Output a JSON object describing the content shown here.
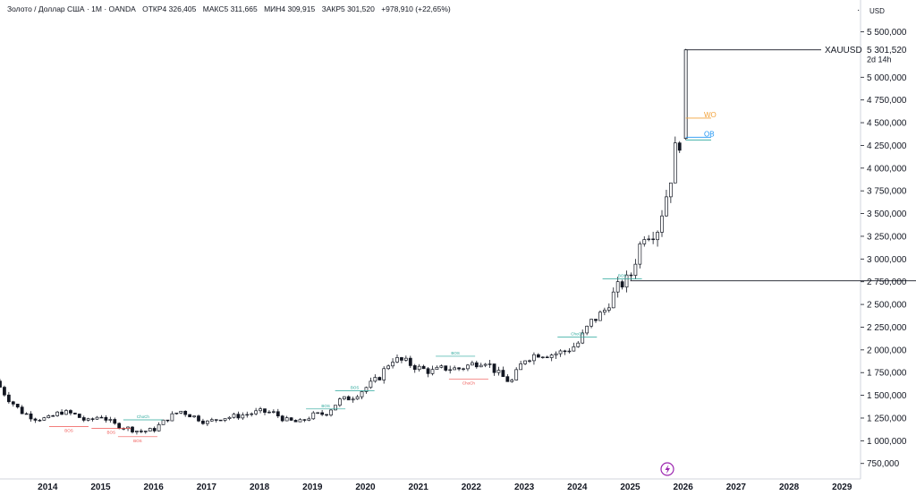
{
  "header": {
    "instrument": "Золото / Доллар США · 1M · OANDA",
    "open": "ОТКР4 326,405",
    "high": "МАКС5 311,665",
    "low": "МИН4 309,915",
    "close": "ЗАКР5 301,520",
    "change": "+978,910 (+22,65%)"
  },
  "currency": "USD",
  "symbol": "XAUUSD",
  "last_price": "5 301,520",
  "countdown": "2d 14h",
  "colors": {
    "candle": "#131722",
    "bos_green": "#26a69a",
    "bos_red": "#ef5350",
    "wo": "#f2a23a",
    "ob": "#2196f3",
    "accent_icon": "#9c27b0"
  },
  "annotations": {
    "wo_label": "WO",
    "ob_label": "OB"
  },
  "chart_data": {
    "type": "candlestick",
    "title": "Золото / Доллар США · 1M · OANDA",
    "xlabel": "",
    "ylabel": "",
    "x_ticks": [
      "2014",
      "2015",
      "2016",
      "2017",
      "2018",
      "2019",
      "2020",
      "2021",
      "2022",
      "2023",
      "2024",
      "2025",
      "2026",
      "2027",
      "2028",
      "2029"
    ],
    "y_ticks": [
      "750,000",
      "1 000,000",
      "1 250,000",
      "1 500,000",
      "1 750,000",
      "2 000,000",
      "2 250,000",
      "2 500,000",
      "2 750,000",
      "3 000,000",
      "3 250,000",
      "3 500,000",
      "3 750,000",
      "4 000,000",
      "4 250,000",
      "4 500,000",
      "4 750,000",
      "5 000,000",
      "5 500,000"
    ],
    "ylim": [
      580,
      5850
    ],
    "xlim": [
      2013.1,
      2029.35
    ],
    "series": [
      {
        "approx_monthly_close": [
          [
            2013.0,
            1670
          ],
          [
            2013.25,
            1470
          ],
          [
            2013.5,
            1320
          ],
          [
            2013.75,
            1250
          ],
          [
            2014.0,
            1240
          ],
          [
            2014.25,
            1320
          ],
          [
            2014.5,
            1290
          ],
          [
            2014.75,
            1210
          ],
          [
            2015.0,
            1280
          ],
          [
            2015.25,
            1180
          ],
          [
            2015.5,
            1140
          ],
          [
            2015.75,
            1100
          ],
          [
            2016.0,
            1120
          ],
          [
            2016.25,
            1240
          ],
          [
            2016.5,
            1330
          ],
          [
            2016.75,
            1270
          ],
          [
            2017.0,
            1200
          ],
          [
            2017.25,
            1250
          ],
          [
            2017.5,
            1265
          ],
          [
            2017.75,
            1290
          ],
          [
            2018.0,
            1320
          ],
          [
            2018.25,
            1310
          ],
          [
            2018.5,
            1225
          ],
          [
            2018.75,
            1200
          ],
          [
            2019.0,
            1280
          ],
          [
            2019.25,
            1300
          ],
          [
            2019.5,
            1440
          ],
          [
            2019.75,
            1480
          ],
          [
            2020.0,
            1580
          ],
          [
            2020.25,
            1690
          ],
          [
            2020.5,
            1900
          ],
          [
            2020.75,
            1870
          ],
          [
            2021.0,
            1800
          ],
          [
            2021.25,
            1760
          ],
          [
            2021.5,
            1800
          ],
          [
            2021.75,
            1790
          ],
          [
            2022.0,
            1840
          ],
          [
            2022.25,
            1890
          ],
          [
            2022.5,
            1740
          ],
          [
            2022.75,
            1640
          ],
          [
            2023.0,
            1900
          ],
          [
            2023.25,
            1960
          ],
          [
            2023.5,
            1950
          ],
          [
            2023.75,
            1980
          ],
          [
            2024.0,
            2060
          ],
          [
            2024.25,
            2300
          ],
          [
            2024.5,
            2420
          ],
          [
            2024.75,
            2680
          ],
          [
            2025.0,
            2800
          ],
          [
            2025.25,
            3280
          ],
          [
            2025.5,
            3300
          ],
          [
            2025.75,
            3850
          ],
          [
            2025.85,
            4200
          ],
          [
            2025.95,
            4320
          ],
          [
            2026.05,
            5301.52
          ]
        ]
      }
    ],
    "structure_labels": [
      {
        "text": "BOS",
        "price": 1155,
        "year": 2014.4,
        "color": "red"
      },
      {
        "text": "BOS",
        "price": 1135,
        "year": 2015.2,
        "color": "red"
      },
      {
        "text": "BOS",
        "price": 1045,
        "year": 2015.7,
        "color": "red"
      },
      {
        "text": "ChoCh",
        "price": 1230,
        "year": 2015.8,
        "color": "green"
      },
      {
        "text": "BOS",
        "price": 1350,
        "year": 2019.25,
        "color": "green"
      },
      {
        "text": "BOS",
        "price": 1550,
        "year": 2019.8,
        "color": "green"
      },
      {
        "text": "BOS",
        "price": 1930,
        "year": 2021.7,
        "color": "green"
      },
      {
        "text": "ChoCh",
        "price": 1680,
        "year": 2021.95,
        "color": "red"
      },
      {
        "text": "ChoCh",
        "price": 2140,
        "year": 2024.0,
        "color": "green"
      },
      {
        "text": "BOS",
        "price": 2780,
        "year": 2024.85,
        "color": "green"
      }
    ],
    "levels": [
      {
        "name": "WO",
        "price": 4550
      },
      {
        "name": "OB",
        "price": 4340
      },
      {
        "name": "OB",
        "price": 4310
      }
    ],
    "horizontal_rays": [
      5301.52,
      2760
    ],
    "grid": false,
    "legend": "none"
  }
}
